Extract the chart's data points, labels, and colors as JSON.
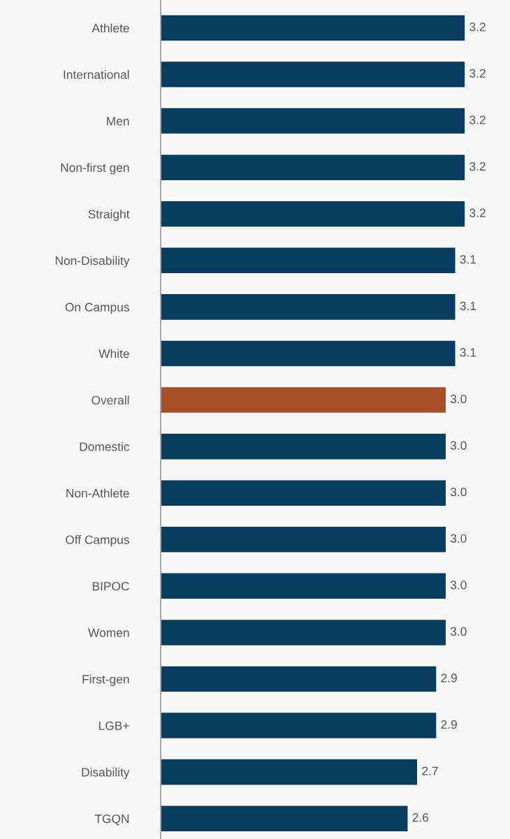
{
  "chart_data": {
    "type": "bar",
    "orientation": "horizontal",
    "categories": [
      "Athlete",
      "International",
      "Men",
      "Non-first gen",
      "Straight",
      "Non-Disability",
      "On Campus",
      "White",
      "Overall",
      "Domestic",
      "Non-Athlete",
      "Off Campus",
      "BIPOC",
      "Women",
      "First-gen",
      "LGB+",
      "Disability",
      "TGQN"
    ],
    "values": [
      3.2,
      3.2,
      3.2,
      3.2,
      3.2,
      3.1,
      3.1,
      3.1,
      3.0,
      3.0,
      3.0,
      3.0,
      3.0,
      3.0,
      2.9,
      2.9,
      2.7,
      2.6
    ],
    "value_labels": [
      "3.2",
      "3.2",
      "3.2",
      "3.2",
      "3.2",
      "3.1",
      "3.1",
      "3.1",
      "3.0",
      "3.0",
      "3.0",
      "3.0",
      "3.0",
      "3.0",
      "2.9",
      "2.9",
      "2.7",
      "2.6"
    ],
    "colors": [
      "#083d5f",
      "#083d5f",
      "#083d5f",
      "#083d5f",
      "#083d5f",
      "#083d5f",
      "#083d5f",
      "#083d5f",
      "#a94f27",
      "#083d5f",
      "#083d5f",
      "#083d5f",
      "#083d5f",
      "#083d5f",
      "#083d5f",
      "#083d5f",
      "#083d5f",
      "#083d5f"
    ],
    "tick_labels": "y",
    "grid": false,
    "legend": false
  }
}
